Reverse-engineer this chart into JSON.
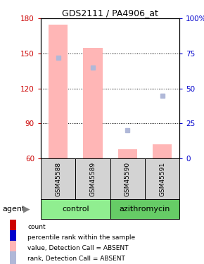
{
  "title": "GDS2111 / PA4906_at",
  "samples": [
    "GSM45588",
    "GSM45589",
    "GSM45590",
    "GSM45591"
  ],
  "group_colors_control": "#90EE90",
  "group_colors_azithromycin": "#66CC66",
  "ylim_left": [
    60,
    180
  ],
  "ylim_right": [
    0,
    100
  ],
  "yticks_left": [
    60,
    90,
    120,
    150,
    180
  ],
  "yticks_right": [
    0,
    25,
    50,
    75,
    100
  ],
  "ylabel_left_color": "#CC0000",
  "ylabel_right_color": "#0000CC",
  "bar_values": [
    175,
    155,
    68,
    72
  ],
  "bar_bottom": 60,
  "rank_values": [
    72,
    65,
    20,
    45
  ],
  "bar_width": 0.55,
  "group_label": "agent",
  "control_label": "control",
  "azithromycin_label": "azithromycin",
  "legend_labels": [
    "count",
    "percentile rank within the sample",
    "value, Detection Call = ABSENT",
    "rank, Detection Call = ABSENT"
  ],
  "legend_colors": [
    "#CC0000",
    "#0000CC",
    "#FFB6B6",
    "#B0B8D8"
  ],
  "sample_box_color": "#D3D3D3",
  "absent_bar_color": "#FFB6B6",
  "absent_rank_color": "#B0B8D8"
}
